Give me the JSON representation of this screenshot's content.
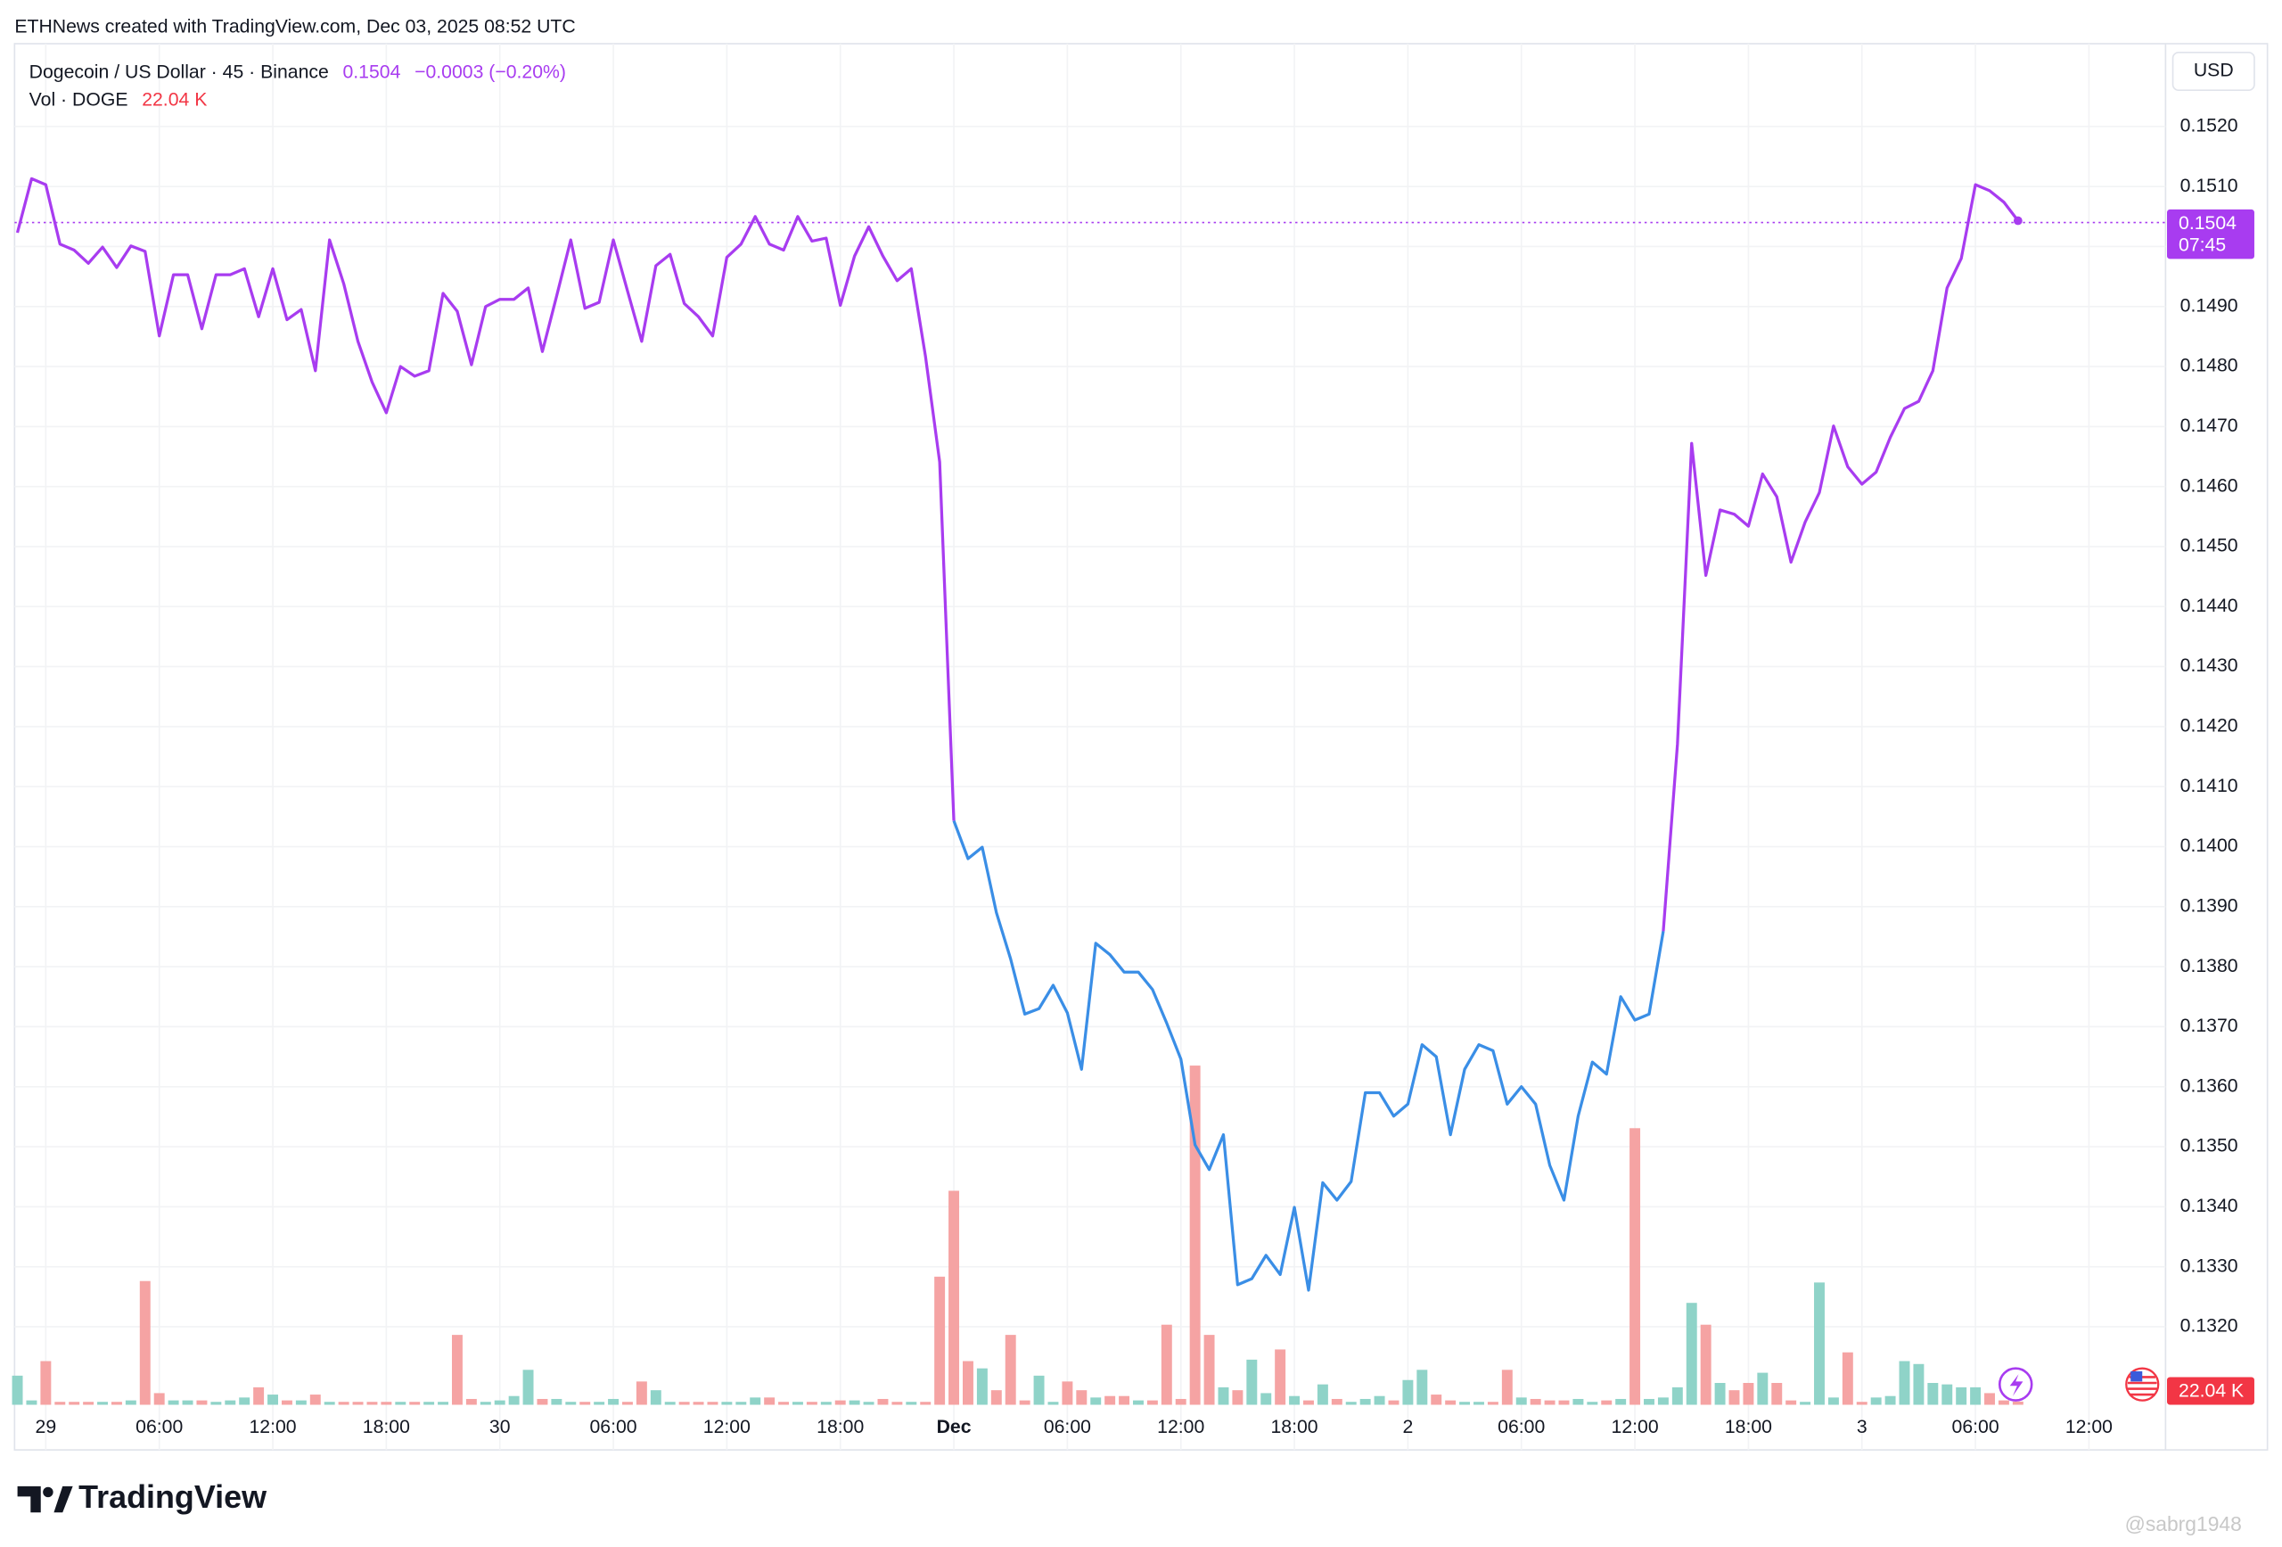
{
  "header": "ETHNews created with TradingView.com, Dec 03, 2025 08:52 UTC",
  "brand": "TradingView",
  "watermark": "@sabrg1948",
  "chart_data": {
    "type": "line",
    "title": "Dogecoin / US Dollar · 45 · Binance",
    "last_price": {
      "value": 0.1504,
      "label": "0.1504"
    },
    "change_label": "−0.0003 (−0.20%)",
    "countdown": "07:45",
    "currency": "USD",
    "price_color": "#a83cf0",
    "grid": true,
    "xlim": [
      -0.2,
      151.4
    ],
    "ylim": [
      0.1307,
      0.15338
    ],
    "yticks": [
      {
        "value": 0.132,
        "label": "0.1320"
      },
      {
        "value": 0.133,
        "label": "0.1330"
      },
      {
        "value": 0.134,
        "label": "0.1340"
      },
      {
        "value": 0.135,
        "label": "0.1350"
      },
      {
        "value": 0.136,
        "label": "0.1360"
      },
      {
        "value": 0.137,
        "label": "0.1370"
      },
      {
        "value": 0.138,
        "label": "0.1380"
      },
      {
        "value": 0.139,
        "label": "0.1390"
      },
      {
        "value": 0.14,
        "label": "0.1400"
      },
      {
        "value": 0.141,
        "label": "0.1410"
      },
      {
        "value": 0.142,
        "label": "0.1420"
      },
      {
        "value": 0.143,
        "label": "0.1430"
      },
      {
        "value": 0.144,
        "label": "0.1440"
      },
      {
        "value": 0.145,
        "label": "0.1450"
      },
      {
        "value": 0.146,
        "label": "0.1460"
      },
      {
        "value": 0.147,
        "label": "0.1470"
      },
      {
        "value": 0.148,
        "label": "0.1480"
      },
      {
        "value": 0.149,
        "label": "0.1490"
      },
      {
        "value": 0.15,
        "label": "0.1500"
      },
      {
        "value": 0.151,
        "label": "0.1510"
      },
      {
        "value": 0.152,
        "label": "0.1520"
      }
    ],
    "xticks": [
      {
        "value": 2,
        "label": "29"
      },
      {
        "value": 10,
        "label": "06:00"
      },
      {
        "value": 18,
        "label": "12:00"
      },
      {
        "value": 26,
        "label": "18:00"
      },
      {
        "value": 34,
        "label": "30"
      },
      {
        "value": 42,
        "label": "06:00"
      },
      {
        "value": 50,
        "label": "12:00"
      },
      {
        "value": 58,
        "label": "18:00"
      },
      {
        "value": 66,
        "label": "Dec",
        "bold": true
      },
      {
        "value": 74,
        "label": "06:00"
      },
      {
        "value": 82,
        "label": "12:00"
      },
      {
        "value": 90,
        "label": "18:00"
      },
      {
        "value": 98,
        "label": "2"
      },
      {
        "value": 106,
        "label": "06:00"
      },
      {
        "value": 114,
        "label": "12:00"
      },
      {
        "value": 122,
        "label": "18:00"
      },
      {
        "value": 130,
        "label": "3"
      },
      {
        "value": 138,
        "label": "06:00"
      },
      {
        "value": 146,
        "label": "12:00"
      }
    ],
    "series": [
      {
        "color": "#a83cf0",
        "values": [
          0.15023,
          0.15113,
          0.15103,
          0.15004,
          0.14994,
          0.14972,
          0.14999,
          0.14965,
          0.15001,
          0.14992,
          0.14851,
          0.14953,
          0.14953,
          0.14863,
          0.14953,
          0.14953,
          0.14963,
          0.14883,
          0.14963,
          0.14878,
          0.14895,
          0.14793,
          0.15011,
          0.14938,
          0.14842,
          0.14774,
          0.14723,
          0.148,
          0.14784,
          0.14793,
          0.14922,
          0.14892,
          0.14803,
          0.149,
          0.14912,
          0.14912,
          0.14931,
          0.14825,
          0.14917,
          0.15011,
          0.14897,
          0.14907,
          0.15011,
          0.14926,
          0.14842,
          0.14968,
          0.14987,
          0.14905,
          0.14883,
          0.14851,
          0.14982,
          0.15004,
          0.1505,
          0.15004,
          0.14994,
          0.1505,
          0.15009,
          0.15014,
          0.14902,
          0.14984,
          0.15033,
          0.14984,
          0.14943,
          0.14963,
          0.14817,
          0.14641,
          0.14043,
          null,
          null,
          null,
          null,
          null,
          null,
          null,
          null,
          null,
          null,
          null,
          null,
          null,
          null,
          null,
          null,
          null,
          null,
          null,
          null,
          null,
          null,
          null,
          null,
          null,
          null,
          null,
          null,
          null,
          null,
          null,
          null,
          null,
          null,
          null,
          null,
          null,
          null,
          null,
          null,
          null,
          null,
          null,
          null,
          null,
          null,
          null,
          null,
          null,
          0.13859,
          0.14171,
          0.14672,
          0.14452,
          0.14561,
          0.14554,
          0.14534,
          0.14621,
          0.14583,
          0.14474,
          0.14541,
          0.1459,
          0.14701,
          0.14633,
          0.14604,
          0.14624,
          0.14682,
          0.1473,
          0.14742,
          0.14793,
          0.14931,
          0.1498,
          0.15103,
          0.15093,
          0.15074,
          0.15043
        ]
      },
      {
        "color": "#3a8ee6",
        "values": [
          null,
          null,
          null,
          null,
          null,
          null,
          null,
          null,
          null,
          null,
          null,
          null,
          null,
          null,
          null,
          null,
          null,
          null,
          null,
          null,
          null,
          null,
          null,
          null,
          null,
          null,
          null,
          null,
          null,
          null,
          null,
          null,
          null,
          null,
          null,
          null,
          null,
          null,
          null,
          null,
          null,
          null,
          null,
          null,
          null,
          null,
          null,
          null,
          null,
          null,
          null,
          null,
          null,
          null,
          null,
          null,
          null,
          null,
          null,
          null,
          null,
          null,
          null,
          null,
          null,
          null,
          0.14043,
          0.1398,
          0.13999,
          0.1389,
          0.13813,
          0.13721,
          0.1373,
          0.13769,
          0.13723,
          0.13629,
          0.13839,
          0.1382,
          0.13791,
          0.13791,
          0.13762,
          0.13706,
          0.13646,
          0.13503,
          0.13462,
          0.1352,
          0.1327,
          0.1328,
          0.13319,
          0.13287,
          0.13399,
          0.13261,
          0.1344,
          0.13411,
          0.13442,
          0.1359,
          0.1359,
          0.13551,
          0.13571,
          0.1367,
          0.1365,
          0.1352,
          0.13629,
          0.1367,
          0.1366,
          0.13571,
          0.136,
          0.13571,
          0.13469,
          0.13411,
          0.13551,
          0.13641,
          0.13621,
          0.1375,
          0.13711,
          0.13721,
          0.13859,
          null,
          null,
          null,
          null,
          null,
          null,
          null,
          null,
          null,
          null,
          null,
          null,
          null,
          null,
          null,
          null,
          null,
          null,
          null,
          null,
          null,
          null,
          null,
          null,
          null
        ]
      }
    ],
    "volume": {
      "label": "Vol · DOGE",
      "last": {
        "value": 22.04,
        "label": "22.04 K"
      },
      "up_color": "#8fd3c8",
      "down_color": "#f5a3a3",
      "last_color": "#f23645",
      "ylim": [
        0,
        2600
      ],
      "values": [
        200,
        30,
        300,
        20,
        20,
        20,
        20,
        20,
        30,
        850,
        80,
        30,
        30,
        30,
        20,
        30,
        50,
        120,
        70,
        30,
        30,
        70,
        20,
        20,
        20,
        20,
        20,
        20,
        20,
        20,
        20,
        480,
        40,
        20,
        30,
        60,
        240,
        40,
        40,
        20,
        20,
        20,
        40,
        20,
        160,
        100,
        20,
        20,
        20,
        20,
        20,
        20,
        50,
        50,
        20,
        20,
        20,
        20,
        30,
        30,
        20,
        40,
        20,
        20,
        20,
        880,
        1470,
        300,
        250,
        100,
        480,
        30,
        200,
        20,
        160,
        100,
        50,
        60,
        60,
        30,
        30,
        550,
        40,
        2330,
        480,
        120,
        100,
        310,
        80,
        380,
        60,
        30,
        140,
        40,
        20,
        40,
        60,
        30,
        170,
        240,
        70,
        30,
        20,
        20,
        20,
        240,
        50,
        40,
        30,
        30,
        40,
        20,
        30,
        40,
        1900,
        40,
        50,
        120,
        700,
        550,
        150,
        100,
        150,
        220,
        150,
        30,
        20,
        840,
        50,
        360,
        20,
        50,
        60,
        300,
        280,
        150,
        140,
        120,
        120,
        80,
        30,
        22.04
      ]
    }
  }
}
